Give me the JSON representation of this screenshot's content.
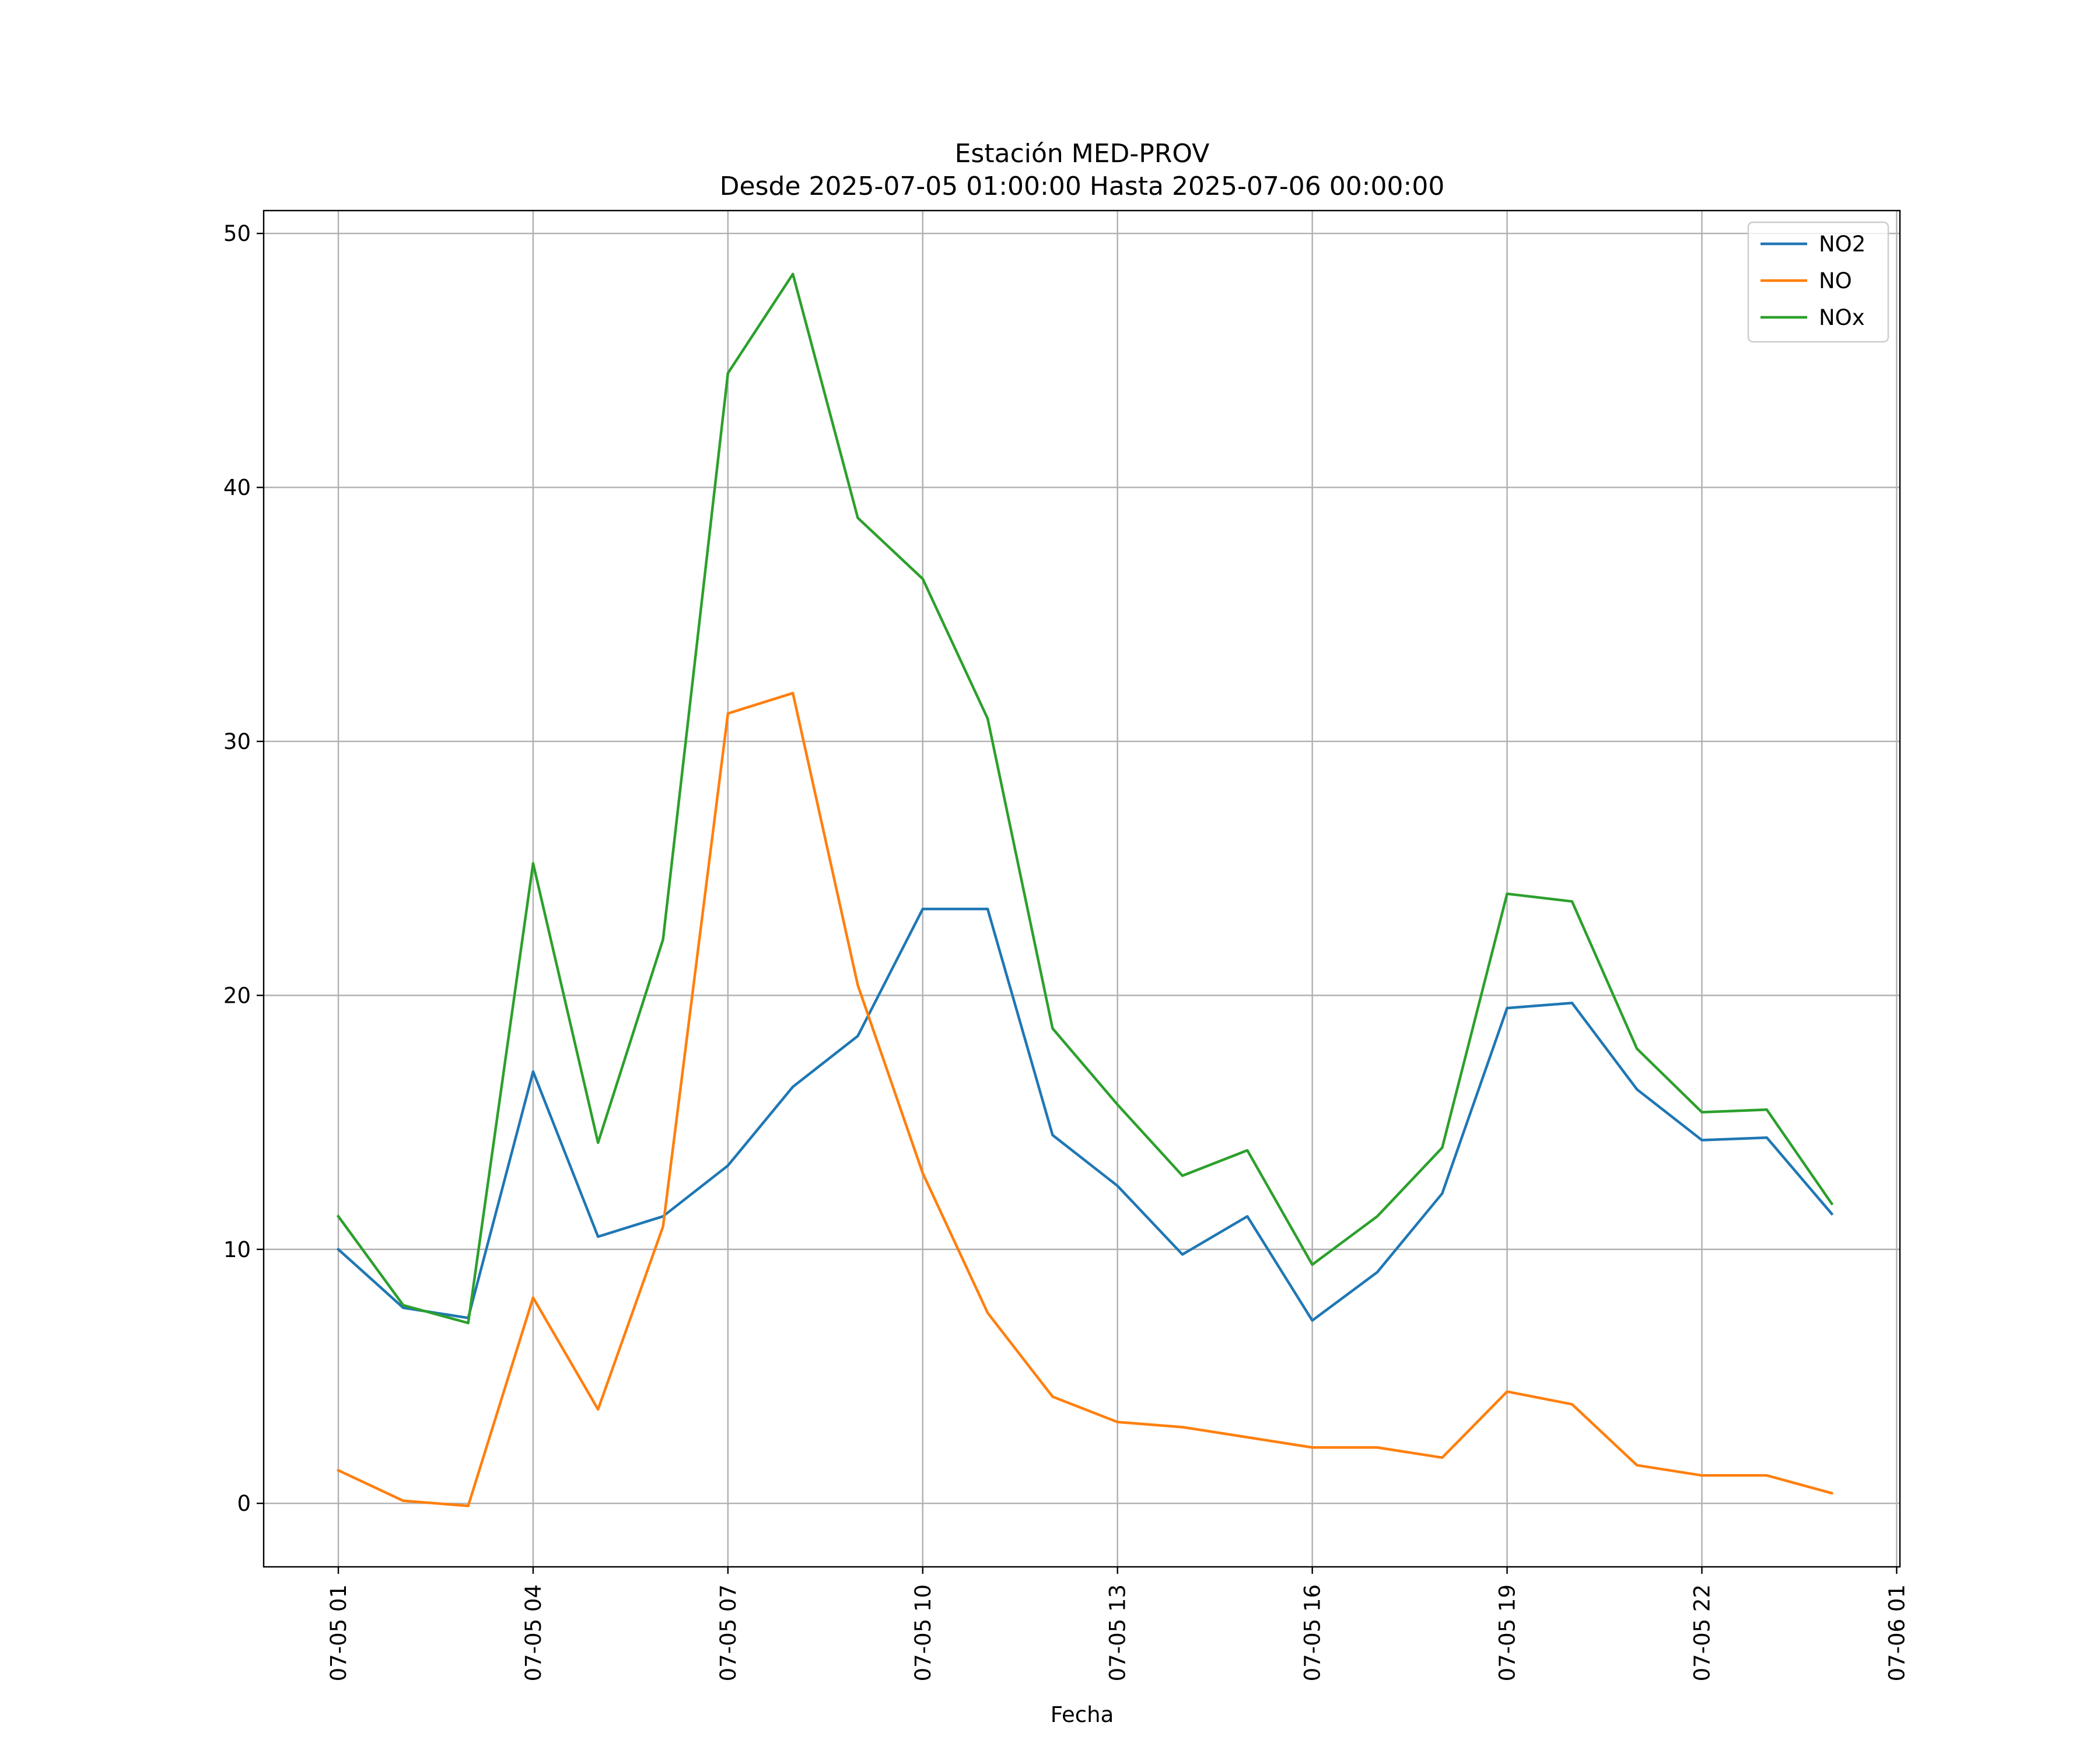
{
  "chart_data": {
    "type": "line",
    "title": "Estación MED-PROV",
    "subtitle": "Desde 2025-07-05 01:00:00 Hasta 2025-07-06 00:00:00",
    "xlabel": "Fecha",
    "ylabel": "",
    "x": [
      "07-05 01",
      "07-05 02",
      "07-05 03",
      "07-05 04",
      "07-05 05",
      "07-05 06",
      "07-05 07",
      "07-05 08",
      "07-05 09",
      "07-05 10",
      "07-05 11",
      "07-05 12",
      "07-05 13",
      "07-05 14",
      "07-05 15",
      "07-05 16",
      "07-05 17",
      "07-05 18",
      "07-05 19",
      "07-05 20",
      "07-05 21",
      "07-05 22",
      "07-05 23",
      "07-06 00"
    ],
    "x_ticks": [
      "07-05 01",
      "07-05 04",
      "07-05 07",
      "07-05 10",
      "07-05 13",
      "07-05 16",
      "07-05 19",
      "07-05 22",
      "07-06 01"
    ],
    "y_ticks": [
      "0",
      "10",
      "20",
      "30",
      "40",
      "50"
    ],
    "ylim": [
      -2.5,
      50.9
    ],
    "xlim": [
      -1.15,
      24.05
    ],
    "grid": true,
    "legend_position": "top-right",
    "series": [
      {
        "name": "NO2",
        "color": "#1f77b4",
        "values": [
          10.0,
          7.7,
          7.3,
          17.0,
          10.5,
          11.3,
          13.3,
          16.4,
          18.4,
          23.4,
          23.4,
          14.5,
          12.5,
          9.8,
          11.3,
          7.2,
          9.1,
          12.2,
          19.5,
          19.7,
          16.3,
          14.3,
          14.4,
          11.4
        ]
      },
      {
        "name": "NO",
        "color": "#ff7f0e",
        "values": [
          1.3,
          0.1,
          -0.1,
          8.1,
          3.7,
          10.9,
          31.1,
          31.9,
          20.4,
          13.0,
          7.5,
          4.2,
          3.2,
          3.0,
          2.6,
          2.2,
          2.2,
          1.8,
          4.4,
          3.9,
          1.5,
          1.1,
          1.1,
          0.4
        ]
      },
      {
        "name": "NOx",
        "color": "#2ca02c",
        "values": [
          11.3,
          7.8,
          7.1,
          25.2,
          14.2,
          22.2,
          44.5,
          48.4,
          38.8,
          36.4,
          30.9,
          18.7,
          15.7,
          12.9,
          13.9,
          9.4,
          11.3,
          14.0,
          24.0,
          23.7,
          17.9,
          15.4,
          15.5,
          11.8
        ]
      }
    ]
  }
}
